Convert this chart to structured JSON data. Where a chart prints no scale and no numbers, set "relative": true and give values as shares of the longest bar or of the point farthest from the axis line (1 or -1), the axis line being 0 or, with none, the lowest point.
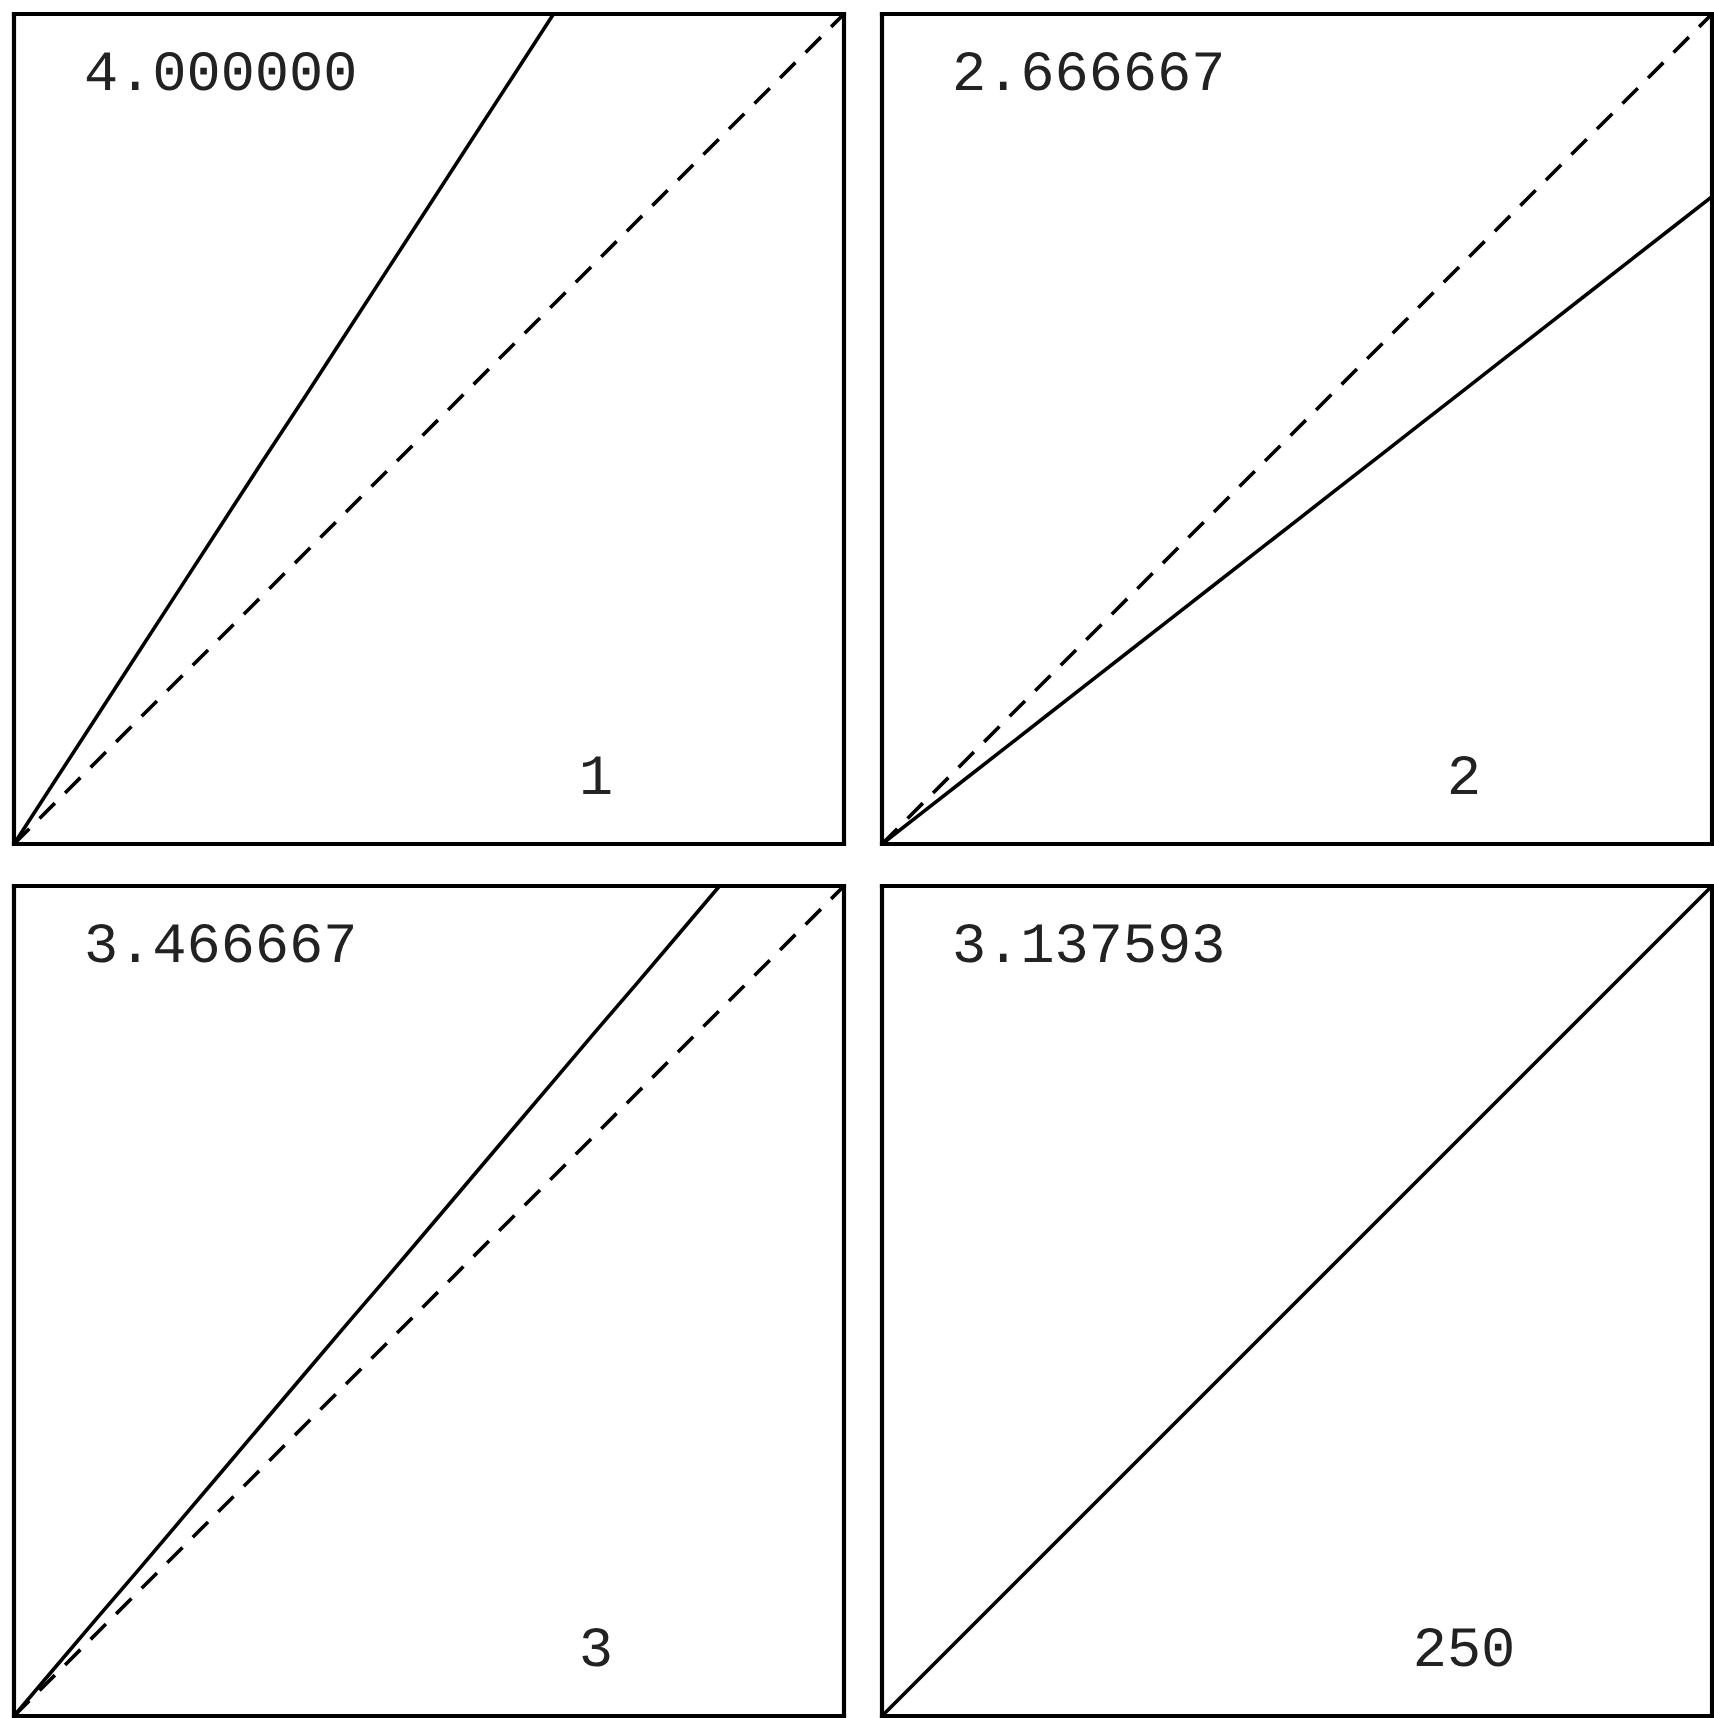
{
  "chart_data": [
    {
      "type": "line",
      "relative": true,
      "categories": [
        null,
        null,
        null,
        null,
        null,
        null,
        null,
        null,
        null,
        null,
        null,
        null,
        null,
        null,
        null,
        null,
        null,
        null,
        null,
        null,
        null
      ],
      "series": [
        {
          "color": "#000000",
          "line_style": "solid",
          "values": [
            0,
            0.077,
            0.154,
            0.231,
            0.308,
            0.385,
            0.462,
            0.538,
            0.615,
            0.692,
            0.769,
            0.846,
            0.923,
            1,
            null,
            null,
            null,
            null,
            null,
            null,
            null
          ]
        },
        {
          "color": "#000000",
          "line_style": "dashed",
          "values": [
            0,
            0.05,
            0.1,
            0.15,
            0.2,
            0.25,
            0.3,
            0.35,
            0.4,
            0.45,
            0.5,
            0.55,
            0.6,
            0.65,
            0.7,
            0.75,
            0.8,
            0.85,
            0.9,
            0.95,
            1
          ]
        }
      ],
      "annotations": [
        "4.000000",
        "1"
      ]
    },
    {
      "type": "line",
      "relative": true,
      "categories": [
        null,
        null,
        null,
        null,
        null,
        null,
        null,
        null,
        null,
        null,
        null,
        null,
        null,
        null,
        null,
        null,
        null,
        null,
        null,
        null,
        null
      ],
      "series": [
        {
          "color": "#000000",
          "line_style": "solid",
          "values": [
            0,
            0.039,
            0.078,
            0.117,
            0.156,
            0.195,
            0.234,
            0.273,
            0.312,
            0.351,
            0.39,
            0.429,
            0.468,
            0.507,
            0.546,
            0.585,
            0.624,
            0.663,
            0.702,
            0.741,
            0.78
          ]
        },
        {
          "color": "#000000",
          "line_style": "dashed",
          "values": [
            0,
            0.05,
            0.1,
            0.15,
            0.2,
            0.25,
            0.3,
            0.35,
            0.4,
            0.45,
            0.5,
            0.55,
            0.6,
            0.65,
            0.7,
            0.75,
            0.8,
            0.85,
            0.9,
            0.95,
            1
          ]
        }
      ],
      "annotations": [
        "2.666667",
        "2"
      ]
    },
    {
      "type": "line",
      "relative": true,
      "categories": [
        null,
        null,
        null,
        null,
        null,
        null,
        null,
        null,
        null,
        null,
        null,
        null,
        null,
        null,
        null,
        null,
        null,
        null,
        null,
        null,
        null
      ],
      "series": [
        {
          "color": "#000000",
          "line_style": "solid",
          "values": [
            0,
            0.059,
            0.118,
            0.176,
            0.235,
            0.294,
            0.353,
            0.412,
            0.471,
            0.529,
            0.588,
            0.647,
            0.706,
            0.765,
            0.824,
            0.882,
            0.941,
            1,
            null,
            null,
            null
          ]
        },
        {
          "color": "#000000",
          "line_style": "dashed",
          "values": [
            0,
            0.05,
            0.1,
            0.15,
            0.2,
            0.25,
            0.3,
            0.35,
            0.4,
            0.45,
            0.5,
            0.55,
            0.6,
            0.65,
            0.7,
            0.75,
            0.8,
            0.85,
            0.9,
            0.95,
            1
          ]
        }
      ],
      "annotations": [
        "3.466667",
        "3"
      ]
    },
    {
      "type": "line",
      "relative": true,
      "categories": [
        null,
        null,
        null,
        null,
        null,
        null,
        null,
        null,
        null,
        null,
        null,
        null,
        null,
        null,
        null,
        null,
        null,
        null,
        null,
        null,
        null
      ],
      "series": [
        {
          "color": "#000000",
          "line_style": "solid",
          "values": [
            0,
            0.05,
            0.1,
            0.15,
            0.2,
            0.25,
            0.3,
            0.35,
            0.4,
            0.45,
            0.5,
            0.55,
            0.6,
            0.65,
            0.7,
            0.75,
            0.8,
            0.85,
            0.9,
            0.95,
            1
          ]
        }
      ],
      "annotations": [
        "3.137593",
        "250"
      ]
    }
  ]
}
